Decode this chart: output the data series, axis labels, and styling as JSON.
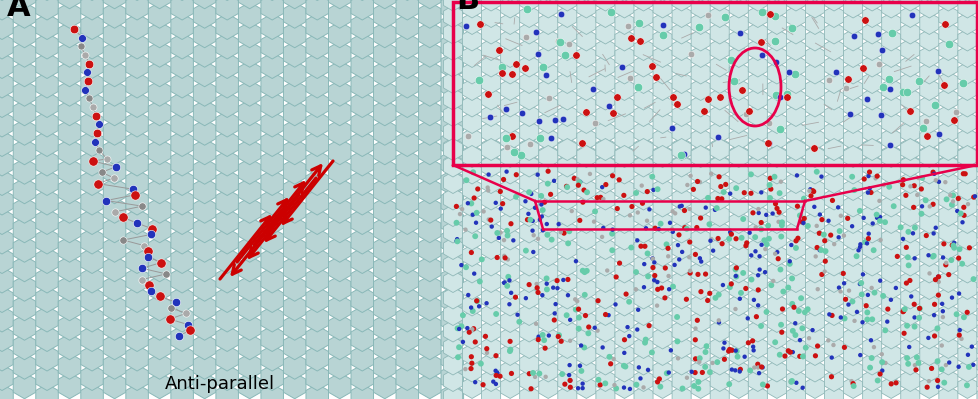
{
  "fig_width": 9.79,
  "fig_height": 3.99,
  "dpi": 100,
  "bg_color": "#ffffff",
  "label_A": "A",
  "label_B": "B",
  "label_fontsize": 22,
  "label_fontweight": "bold",
  "antiparallel_text": "Anti-parallel",
  "antiparallel_fontsize": 13,
  "arrow_color": "#cc0000",
  "inset_border_color": "#e8004a",
  "hex_fill_A": "#b8d4d4",
  "hex_edge_A": "#8ab8b8",
  "hex_fill_B": "#d0e6e6",
  "hex_edge_B": "#90b8b8"
}
